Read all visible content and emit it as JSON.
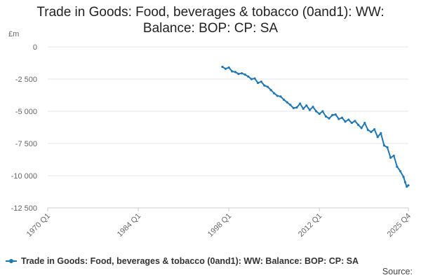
{
  "title_line1": "Trade in Goods: Food, beverages & tobacco (0and1): WW:",
  "title_line2": "Balance: BOP: CP: SA",
  "legend_label": "Trade in Goods: Food, beverages & tobacco (0and1): WW: Balance: BOP: CP: SA",
  "source_label": "Source:",
  "series_color": "#1f77b4",
  "chart_data": {
    "type": "line",
    "title": "Trade in Goods: Food, beverages & tobacco (0and1): WW: Balance: BOP: CP: SA",
    "ylabel": "£m",
    "xlabel": "",
    "ylim": [
      -12500,
      0
    ],
    "y_ticks": [
      0,
      -2500,
      -5000,
      -7500,
      -10000,
      -12500
    ],
    "y_tick_labels": [
      "0",
      "-2 500",
      "-5 000",
      "-7 500",
      "-10 000",
      "-12 500"
    ],
    "x_range": [
      1970.0,
      2025.75
    ],
    "x_ticks": [
      1970.0,
      1984.0,
      1998.0,
      2012.0,
      2025.75
    ],
    "x_tick_labels": [
      "1970 Q1",
      "1984 Q1",
      "1998 Q1",
      "2012 Q1",
      "2025 Q4"
    ],
    "grid": true,
    "legend": "bottom",
    "series": [
      {
        "name": "Trade in Goods: Food, beverages & tobacco (0and1): WW: Balance: BOP: CP: SA",
        "x": [
          1997.0,
          1997.5,
          1998.0,
          1998.5,
          1999.0,
          1999.5,
          2000.0,
          2000.5,
          2001.0,
          2001.5,
          2002.0,
          2002.5,
          2003.0,
          2003.5,
          2004.0,
          2004.5,
          2005.0,
          2005.5,
          2006.0,
          2006.5,
          2007.0,
          2007.5,
          2008.0,
          2008.5,
          2009.0,
          2009.5,
          2010.0,
          2010.5,
          2011.0,
          2011.5,
          2012.0,
          2012.5,
          2013.0,
          2013.5,
          2014.0,
          2014.5,
          2015.0,
          2015.5,
          2016.0,
          2016.5,
          2017.0,
          2017.5,
          2018.0,
          2018.5,
          2019.0,
          2019.5,
          2020.0,
          2020.5,
          2021.0,
          2021.5,
          2022.0,
          2022.5,
          2023.0,
          2023.5,
          2024.0,
          2024.5,
          2025.0,
          2025.25,
          2025.5,
          2025.75
        ],
        "values": [
          -1550,
          -1700,
          -1600,
          -1900,
          -1950,
          -2100,
          -2050,
          -2150,
          -2300,
          -2500,
          -2450,
          -2800,
          -2700,
          -3000,
          -3100,
          -3350,
          -3600,
          -3800,
          -3850,
          -4100,
          -4300,
          -4500,
          -4750,
          -4700,
          -4400,
          -4800,
          -4550,
          -4900,
          -4650,
          -5000,
          -5200,
          -5000,
          -5400,
          -5550,
          -5300,
          -5250,
          -5600,
          -5500,
          -5800,
          -5650,
          -5900,
          -5750,
          -6050,
          -6300,
          -5900,
          -6450,
          -6600,
          -6400,
          -7000,
          -6700,
          -7650,
          -7800,
          -8600,
          -8450,
          -9300,
          -9650,
          -10100,
          -10500,
          -10850,
          -10750
        ]
      }
    ]
  }
}
